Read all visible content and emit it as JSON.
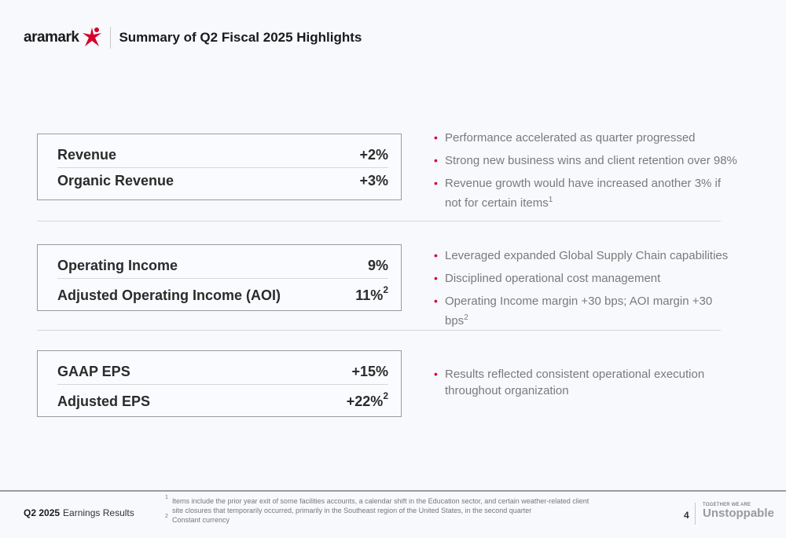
{
  "header": {
    "logo_text": "aramark",
    "title": "Summary of Q2 Fiscal 2025 Highlights"
  },
  "sections": [
    {
      "metrics": [
        {
          "label": "Revenue",
          "value": "+2%",
          "note": ""
        },
        {
          "label": "Organic Revenue",
          "value": "+3%",
          "note": ""
        }
      ],
      "bullets": [
        {
          "text": "Performance accelerated as quarter progressed",
          "note": ""
        },
        {
          "text": "Strong new business wins and client retention over 98%",
          "note": ""
        },
        {
          "text": "Revenue growth would have increased another 3% if not for certain items",
          "note": "1"
        }
      ]
    },
    {
      "metrics": [
        {
          "label": "Operating Income",
          "value": "9%",
          "note": ""
        },
        {
          "label": "Adjusted Operating Income (AOI)",
          "value": "11%",
          "note": "2"
        }
      ],
      "bullets": [
        {
          "text": "Leveraged expanded Global Supply Chain capabilities",
          "note": ""
        },
        {
          "text": "Disciplined operational cost management",
          "note": ""
        },
        {
          "text": "Operating Income margin +30 bps; AOI margin +30 bps",
          "note": "2"
        }
      ]
    },
    {
      "metrics": [
        {
          "label": "GAAP EPS",
          "value": "+15%",
          "note": ""
        },
        {
          "label": "Adjusted EPS",
          "value": "+22%",
          "note": "2"
        }
      ],
      "bullets": [
        {
          "text": "Results reflected consistent operational execution throughout organization",
          "note": ""
        }
      ]
    }
  ],
  "footer": {
    "period": "Q2 2025",
    "report": "Earnings Results",
    "footnotes": [
      {
        "num": "1",
        "text": "Items include the prior year exit of some facilities accounts, a calendar shift in the Education sector, and certain weather-related client site closures that temporarily occurred, primarily in the Southeast region of the United States, in the second quarter"
      },
      {
        "num": "2",
        "text": "Constant currency"
      }
    ],
    "page_number": "4",
    "tagline_small": "TOGETHER WE ARE",
    "tagline_big": "Unstoppable"
  },
  "colors": {
    "accent": "#d6002a",
    "bullet_text": "#7a7a7a",
    "box_border": "#9a9a9a"
  }
}
